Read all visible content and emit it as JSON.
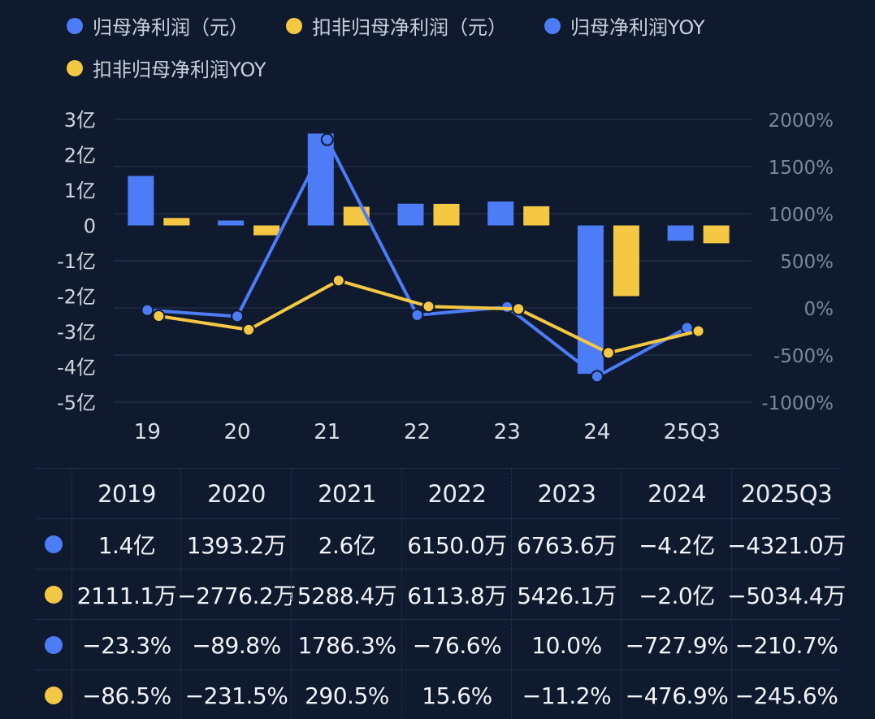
{
  "legend": [
    {
      "label": "归母净利润（元）",
      "color": "#4d7cf7"
    },
    {
      "label": "扣非归母净利润（元）",
      "color": "#f5c843"
    },
    {
      "label": "归母净利润YOY",
      "color": "#4d7cf7"
    },
    {
      "label": "扣非归母净利润YOY",
      "color": "#f5c843"
    }
  ],
  "chart_data": {
    "type": "bar+line",
    "categories": [
      "19",
      "20",
      "21",
      "22",
      "23",
      "24",
      "25Q3"
    ],
    "left_axis": {
      "ticks": [
        "3亿",
        "2亿",
        "1亿",
        "0",
        "-1亿",
        "-2亿",
        "-3亿",
        "-4亿",
        "-5亿"
      ],
      "tick_values": [
        3,
        2,
        1,
        0,
        -1,
        -2,
        -3,
        -4,
        -5
      ],
      "ylim": [
        -5,
        3
      ],
      "unit": "亿元"
    },
    "right_axis": {
      "ticks": [
        "2000%",
        "1500%",
        "1000%",
        "500%",
        "0%",
        "-500%",
        "-1000%"
      ],
      "tick_values": [
        2000,
        1500,
        1000,
        500,
        0,
        -500,
        -1000
      ],
      "ylim": [
        -1000,
        2000
      ]
    },
    "series": [
      {
        "name": "归母净利润（元）",
        "type": "bar",
        "axis": "left",
        "color": "#4d7cf7",
        "values": [
          1.4,
          0.139,
          2.6,
          0.615,
          0.676,
          -4.2,
          -0.432
        ]
      },
      {
        "name": "扣非归母净利润（元）",
        "type": "bar",
        "axis": "left",
        "color": "#f5c843",
        "values": [
          0.211,
          -0.278,
          0.529,
          0.611,
          0.543,
          -2.0,
          -0.503
        ]
      },
      {
        "name": "归母净利润YOY",
        "type": "line",
        "axis": "right",
        "color": "#4d7cf7",
        "values": [
          -23.3,
          -89.8,
          1786.3,
          -76.6,
          10.0,
          -727.9,
          -210.7
        ]
      },
      {
        "name": "扣非归母净利润YOY",
        "type": "line",
        "axis": "right",
        "color": "#f5c843",
        "values": [
          -86.5,
          -231.5,
          290.5,
          15.6,
          -11.2,
          -476.9,
          -245.6
        ]
      }
    ]
  },
  "table": {
    "headers": [
      "2019",
      "2020",
      "2021",
      "2022",
      "2023",
      "2024",
      "2025Q3"
    ],
    "rows": [
      {
        "color": "#4d7cf7",
        "cells": [
          "1.4亿",
          "1393.2万",
          "2.6亿",
          "6150.0万",
          "6763.6万",
          "−4.2亿",
          "−4321.0万"
        ]
      },
      {
        "color": "#f5c843",
        "cells": [
          "2111.1万",
          "−2776.2万",
          "5288.4万",
          "6113.8万",
          "5426.1万",
          "−2.0亿",
          "−5034.4万"
        ]
      },
      {
        "color": "#4d7cf7",
        "cells": [
          "−23.3%",
          "−89.8%",
          "1786.3%",
          "−76.6%",
          "10.0%",
          "−727.9%",
          "−210.7%"
        ]
      },
      {
        "color": "#f5c843",
        "cells": [
          "−86.5%",
          "−231.5%",
          "290.5%",
          "15.6%",
          "−11.2%",
          "−476.9%",
          "−245.6%"
        ]
      }
    ]
  }
}
